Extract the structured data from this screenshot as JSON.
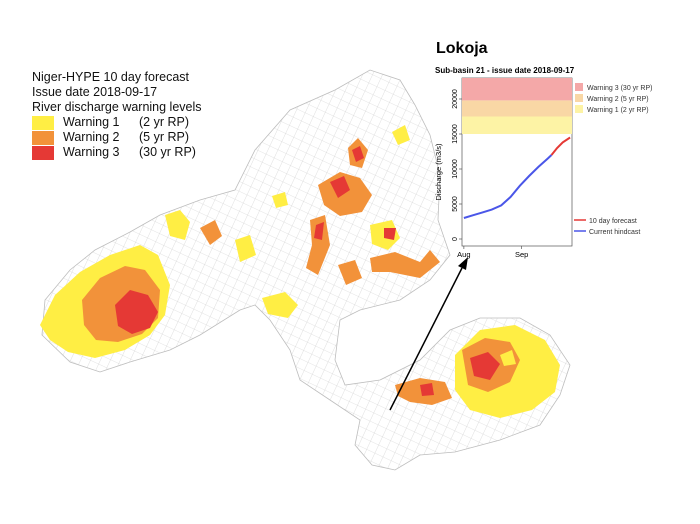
{
  "legend": {
    "title_line1": "Niger-HYPE 10 day forecast",
    "title_line2": "Issue date 2018-09-17",
    "title_line3": "River discharge warning levels",
    "items": [
      {
        "label": "Warning 1",
        "rp": "(2 yr RP)",
        "color": "#ffee44"
      },
      {
        "label": "Warning 2",
        "rp": "(5 yr RP)",
        "color": "#f2923a"
      },
      {
        "label": "Warning 3",
        "rp": "(30 yr RP)",
        "color": "#e53935"
      }
    ]
  },
  "inset": {
    "station": "Lokoja",
    "subtitle": "Sub-basin 21 - issue date 2018-09-17",
    "ylabel": "Discharge (m3/s)",
    "yticks": [
      "0",
      "5000",
      "10000",
      "15000",
      "20000"
    ],
    "xticks": [
      "Aug",
      "Sep"
    ],
    "bands_legend": [
      "Warning 3 (30 yr RP)",
      "Warning 2 (5 yr RP)",
      "Warning 1 (2 yr RP)"
    ],
    "lines_legend": [
      "10 day forecast",
      "Current hindcast"
    ],
    "colors": {
      "band3": "#f4a8a8",
      "band2": "#f9d7a5",
      "band1": "#fdf3a5",
      "forecast": "#e53935",
      "hindcast": "#4a56e8"
    }
  },
  "chart_data": {
    "type": "line",
    "title": "Sub-basin 21 - issue date 2018-09-17",
    "ylabel": "Discharge (m3/s)",
    "ylim": [
      -1000,
      23000
    ],
    "warning_levels": [
      {
        "name": "Warning 1 (2 yr RP)",
        "from": 15000,
        "to": 17500
      },
      {
        "name": "Warning 2 (5 yr RP)",
        "from": 17500,
        "to": 19800
      },
      {
        "name": "Warning 3 (30 yr RP)",
        "from": 19800,
        "to": 23000
      }
    ],
    "series": [
      {
        "name": "Current hindcast",
        "x": [
          "2018-08-01",
          "2018-08-06",
          "2018-08-11",
          "2018-08-16",
          "2018-08-21",
          "2018-08-26",
          "2018-08-31",
          "2018-09-05",
          "2018-09-10",
          "2018-09-15",
          "2018-09-17"
        ],
        "y": [
          3000,
          3400,
          3800,
          4200,
          4800,
          6000,
          7600,
          9000,
          10300,
          11500,
          12000
        ]
      },
      {
        "name": "10 day forecast",
        "x": [
          "2018-09-17",
          "2018-09-20",
          "2018-09-23",
          "2018-09-27"
        ],
        "y": [
          12000,
          13000,
          13800,
          14500
        ]
      }
    ]
  }
}
